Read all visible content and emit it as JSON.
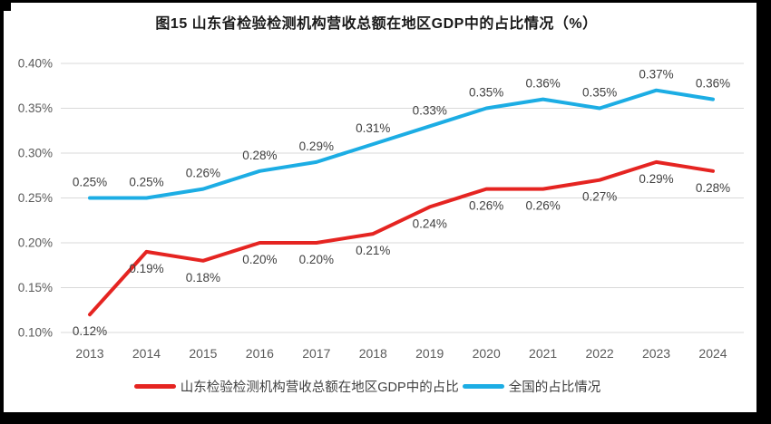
{
  "figure": {
    "title": "图15  山东省检验检测机构营收总额在地区GDP中的占比情况（%）"
  },
  "chart_data": {
    "type": "line",
    "title": "图15  山东省检验检测机构营收总额在地区GDP中的占比情况（%）",
    "categories": [
      "2013",
      "2014",
      "2015",
      "2016",
      "2017",
      "2018",
      "2019",
      "2020",
      "2021",
      "2022",
      "2023",
      "2024"
    ],
    "series": [
      {
        "name": "山东检验检测机构营收总额在地区GDP中的占比",
        "color": "#e52421",
        "values": [
          0.12,
          0.19,
          0.18,
          0.2,
          0.2,
          0.21,
          0.24,
          0.26,
          0.26,
          0.27,
          0.29,
          0.28
        ],
        "labels": [
          "0.12%",
          "0.19%",
          "0.18%",
          "0.20%",
          "0.20%",
          "0.21%",
          "0.24%",
          "0.26%",
          "0.26%",
          "0.27%",
          "0.29%",
          "0.28%"
        ],
        "label_position": "below"
      },
      {
        "name": "全国的占比情况",
        "color": "#1cade4",
        "values": [
          0.25,
          0.25,
          0.26,
          0.28,
          0.29,
          0.31,
          0.33,
          0.35,
          0.36,
          0.35,
          0.37,
          0.36
        ],
        "labels": [
          "0.25%",
          "0.25%",
          "0.26%",
          "0.28%",
          "0.29%",
          "0.31%",
          "0.33%",
          "0.35%",
          "0.36%",
          "0.35%",
          "0.37%",
          "0.36%"
        ],
        "label_position": "above"
      }
    ],
    "xlabel": "",
    "ylabel": "",
    "ylim": [
      0.1,
      0.4
    ],
    "ytick_step": 0.05,
    "ytick_labels": [
      "0.10%",
      "0.15%",
      "0.20%",
      "0.25%",
      "0.30%",
      "0.35%",
      "0.40%"
    ],
    "grid": "horizontal",
    "gridline_color": "#d9d9d9",
    "tick_label_color": "#595959",
    "data_label_color": "#404040",
    "legend_position": "bottom"
  }
}
